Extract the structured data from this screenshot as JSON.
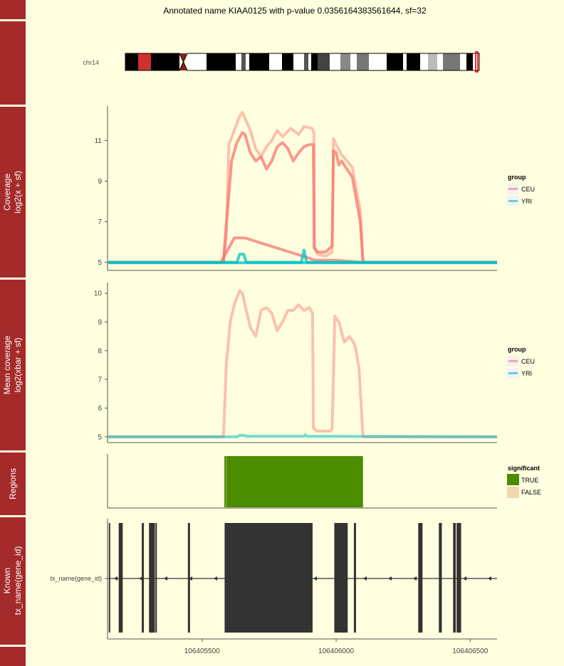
{
  "title": "Annotated name KIAA0125 with p-value 0.0356164383561644, sf=32",
  "colors": {
    "background": "#FFFFE0",
    "strip": "#A52A2A",
    "ceu": "#F8766D",
    "yri": "#00BFC4",
    "significant_true": "#4C8C00",
    "significant_false": "#EED8AE",
    "gene": "#333333"
  },
  "ideogram": {
    "chrom_label": "chr14",
    "side_label": "chr14"
  },
  "chart_data": [
    {
      "panel": "coverage",
      "type": "line",
      "strip_label_lines": [
        "Coverage",
        "log2(x + sf)"
      ],
      "xlim": [
        106405150,
        106406600
      ],
      "ylim": [
        4.6,
        12.6
      ],
      "yticks": [
        5,
        7,
        9,
        11
      ],
      "ytick_labels": [
        "5",
        "7",
        "9",
        "11"
      ],
      "legend": {
        "title": "group",
        "entries": [
          "CEU",
          "YRI"
        ],
        "placement": "right"
      },
      "series": [
        {
          "name": "CEU",
          "values_x": [
            106405150,
            106405580,
            106405585,
            106405610,
            106405630,
            106405650,
            106405660,
            106405680,
            106405700,
            106405720,
            106405740,
            106405760,
            106405780,
            106405800,
            106405820,
            106405840,
            106405860,
            106405880,
            106405900,
            106405915,
            106405918,
            106405930,
            106405960,
            106405985,
            106405990,
            106406000,
            106406010,
            106406020,
            106406040,
            106406060,
            106406090,
            106406100,
            106406600
          ],
          "values_y": [
            5.0,
            5.0,
            6.0,
            10.0,
            10.9,
            11.4,
            11.3,
            10.4,
            10.0,
            10.2,
            9.6,
            10.0,
            10.7,
            10.9,
            10.6,
            10.0,
            10.4,
            10.7,
            10.8,
            10.8,
            5.7,
            5.5,
            5.5,
            5.8,
            10.5,
            10.4,
            9.8,
            10.0,
            9.6,
            9.2,
            7.0,
            5.0,
            5.0
          ]
        },
        {
          "name": "CEU",
          "values_x": [
            106405150,
            106405578,
            106405590,
            106405600,
            106405640,
            106405650,
            106405680,
            106405700,
            106405720,
            106405740,
            106405760,
            106405780,
            106405800,
            106405830,
            106405860,
            106405880,
            106405910,
            106405917,
            106405919,
            106405930,
            106405960,
            106405985,
            106405990,
            106406000,
            106406020,
            106406040,
            106406060,
            106406090,
            106406100,
            106406600
          ],
          "values_y": [
            5.0,
            5.0,
            6.2,
            10.8,
            12.2,
            12.4,
            11.5,
            10.6,
            10.2,
            10.7,
            11.0,
            11.5,
            11.2,
            11.6,
            11.3,
            11.7,
            11.6,
            11.4,
            5.8,
            5.4,
            5.3,
            5.5,
            11.1,
            10.8,
            10.3,
            10.0,
            9.7,
            7.5,
            5.0,
            5.0
          ]
        },
        {
          "name": "CEU",
          "values_x": [
            106405150,
            106405570,
            106405620,
            106405660,
            106405900,
            106405920,
            106406000,
            106406095,
            106406600
          ],
          "values_y": [
            5.0,
            5.0,
            6.2,
            6.2,
            5.2,
            5.1,
            5.1,
            5.0,
            5.0
          ]
        },
        {
          "name": "YRI",
          "values_x": [
            106405150,
            106405630,
            106405640,
            106405655,
            106405665,
            106405870,
            106405880,
            106405890,
            106406600
          ],
          "values_y": [
            5.0,
            5.0,
            5.4,
            5.4,
            5.0,
            5.0,
            5.6,
            5.0,
            5.0
          ]
        },
        {
          "name": "YRI",
          "values_x": [
            106405150,
            106406600
          ],
          "values_y": [
            4.98,
            4.98
          ]
        }
      ]
    },
    {
      "panel": "mean_coverage",
      "type": "line",
      "strip_label_lines": [
        "Mean coverage",
        "log2(xbar + sf)"
      ],
      "xlim": [
        106405150,
        106406600
      ],
      "ylim": [
        4.8,
        10.3
      ],
      "yticks": [
        5,
        6,
        7,
        8,
        9,
        10
      ],
      "ytick_labels": [
        "5",
        "6",
        "7",
        "8",
        "9",
        "10"
      ],
      "legend": {
        "title": "group",
        "entries": [
          "CEU",
          "YRI"
        ],
        "placement": "right"
      },
      "series": [
        {
          "name": "CEU",
          "values_x": [
            106405150,
            106405580,
            106405590,
            106405605,
            106405620,
            106405640,
            106405650,
            106405665,
            106405680,
            106405700,
            106405720,
            106405740,
            106405760,
            106405780,
            106405800,
            106405820,
            106405840,
            106405860,
            106405880,
            106405900,
            106405912,
            106405915,
            106405930,
            106405960,
            106405980,
            106405985,
            106405995,
            106406010,
            106406030,
            106406050,
            106406070,
            106406085,
            106406100,
            106406600
          ],
          "values_y": [
            5.0,
            5.0,
            7.5,
            9.0,
            9.6,
            10.1,
            10.0,
            9.4,
            8.8,
            8.5,
            9.4,
            9.5,
            9.3,
            8.7,
            9.0,
            9.4,
            9.4,
            9.6,
            9.4,
            9.5,
            9.3,
            5.3,
            5.2,
            5.2,
            5.2,
            5.3,
            9.2,
            9.0,
            8.3,
            8.5,
            8.2,
            7.4,
            5.0,
            5.0
          ]
        },
        {
          "name": "YRI",
          "values_x": [
            106405150,
            106405630,
            106405640,
            106405660,
            106405665,
            106405880,
            106405885,
            106405890,
            106406600
          ],
          "values_y": [
            5.0,
            5.0,
            5.05,
            5.05,
            5.02,
            5.02,
            5.08,
            5.02,
            5.0
          ]
        }
      ]
    },
    {
      "panel": "regions",
      "type": "bar",
      "strip_label_lines": [
        "Regions"
      ],
      "xlim": [
        106405150,
        106406600
      ],
      "legend": {
        "title": "significant",
        "entries": [
          "TRUE",
          "FALSE"
        ],
        "placement": "right"
      },
      "regions": [
        {
          "start": 106405583,
          "end": 106405590,
          "significant": "TRUE"
        },
        {
          "start": 106405591,
          "end": 106406100,
          "significant": "TRUE"
        }
      ]
    },
    {
      "panel": "known_genes",
      "type": "bar",
      "strip_label_lines": [
        "Known",
        "tx_name(gene_id)"
      ],
      "xlim": [
        106405150,
        106406600
      ],
      "x_ticks": [
        106405500,
        106406000,
        106406500
      ],
      "x_tick_labels": [
        "106405500",
        "106406000",
        "106406500"
      ],
      "y_tick_label": "tx_name(gene_id)",
      "strand": "-",
      "exons": [
        [
          106405152,
          106405156
        ],
        [
          106405189,
          106405204
        ],
        [
          106405275,
          106405283
        ],
        [
          106405302,
          106405324
        ],
        [
          106405326,
          106405331
        ],
        [
          106405447,
          106405455
        ],
        [
          106405584,
          106405912
        ],
        [
          106405993,
          106406043
        ],
        [
          106406066,
          106406074
        ],
        [
          106406306,
          106406322
        ],
        [
          106406383,
          106406394
        ],
        [
          106406436,
          106406446
        ],
        [
          106406449,
          106406466
        ]
      ]
    }
  ]
}
